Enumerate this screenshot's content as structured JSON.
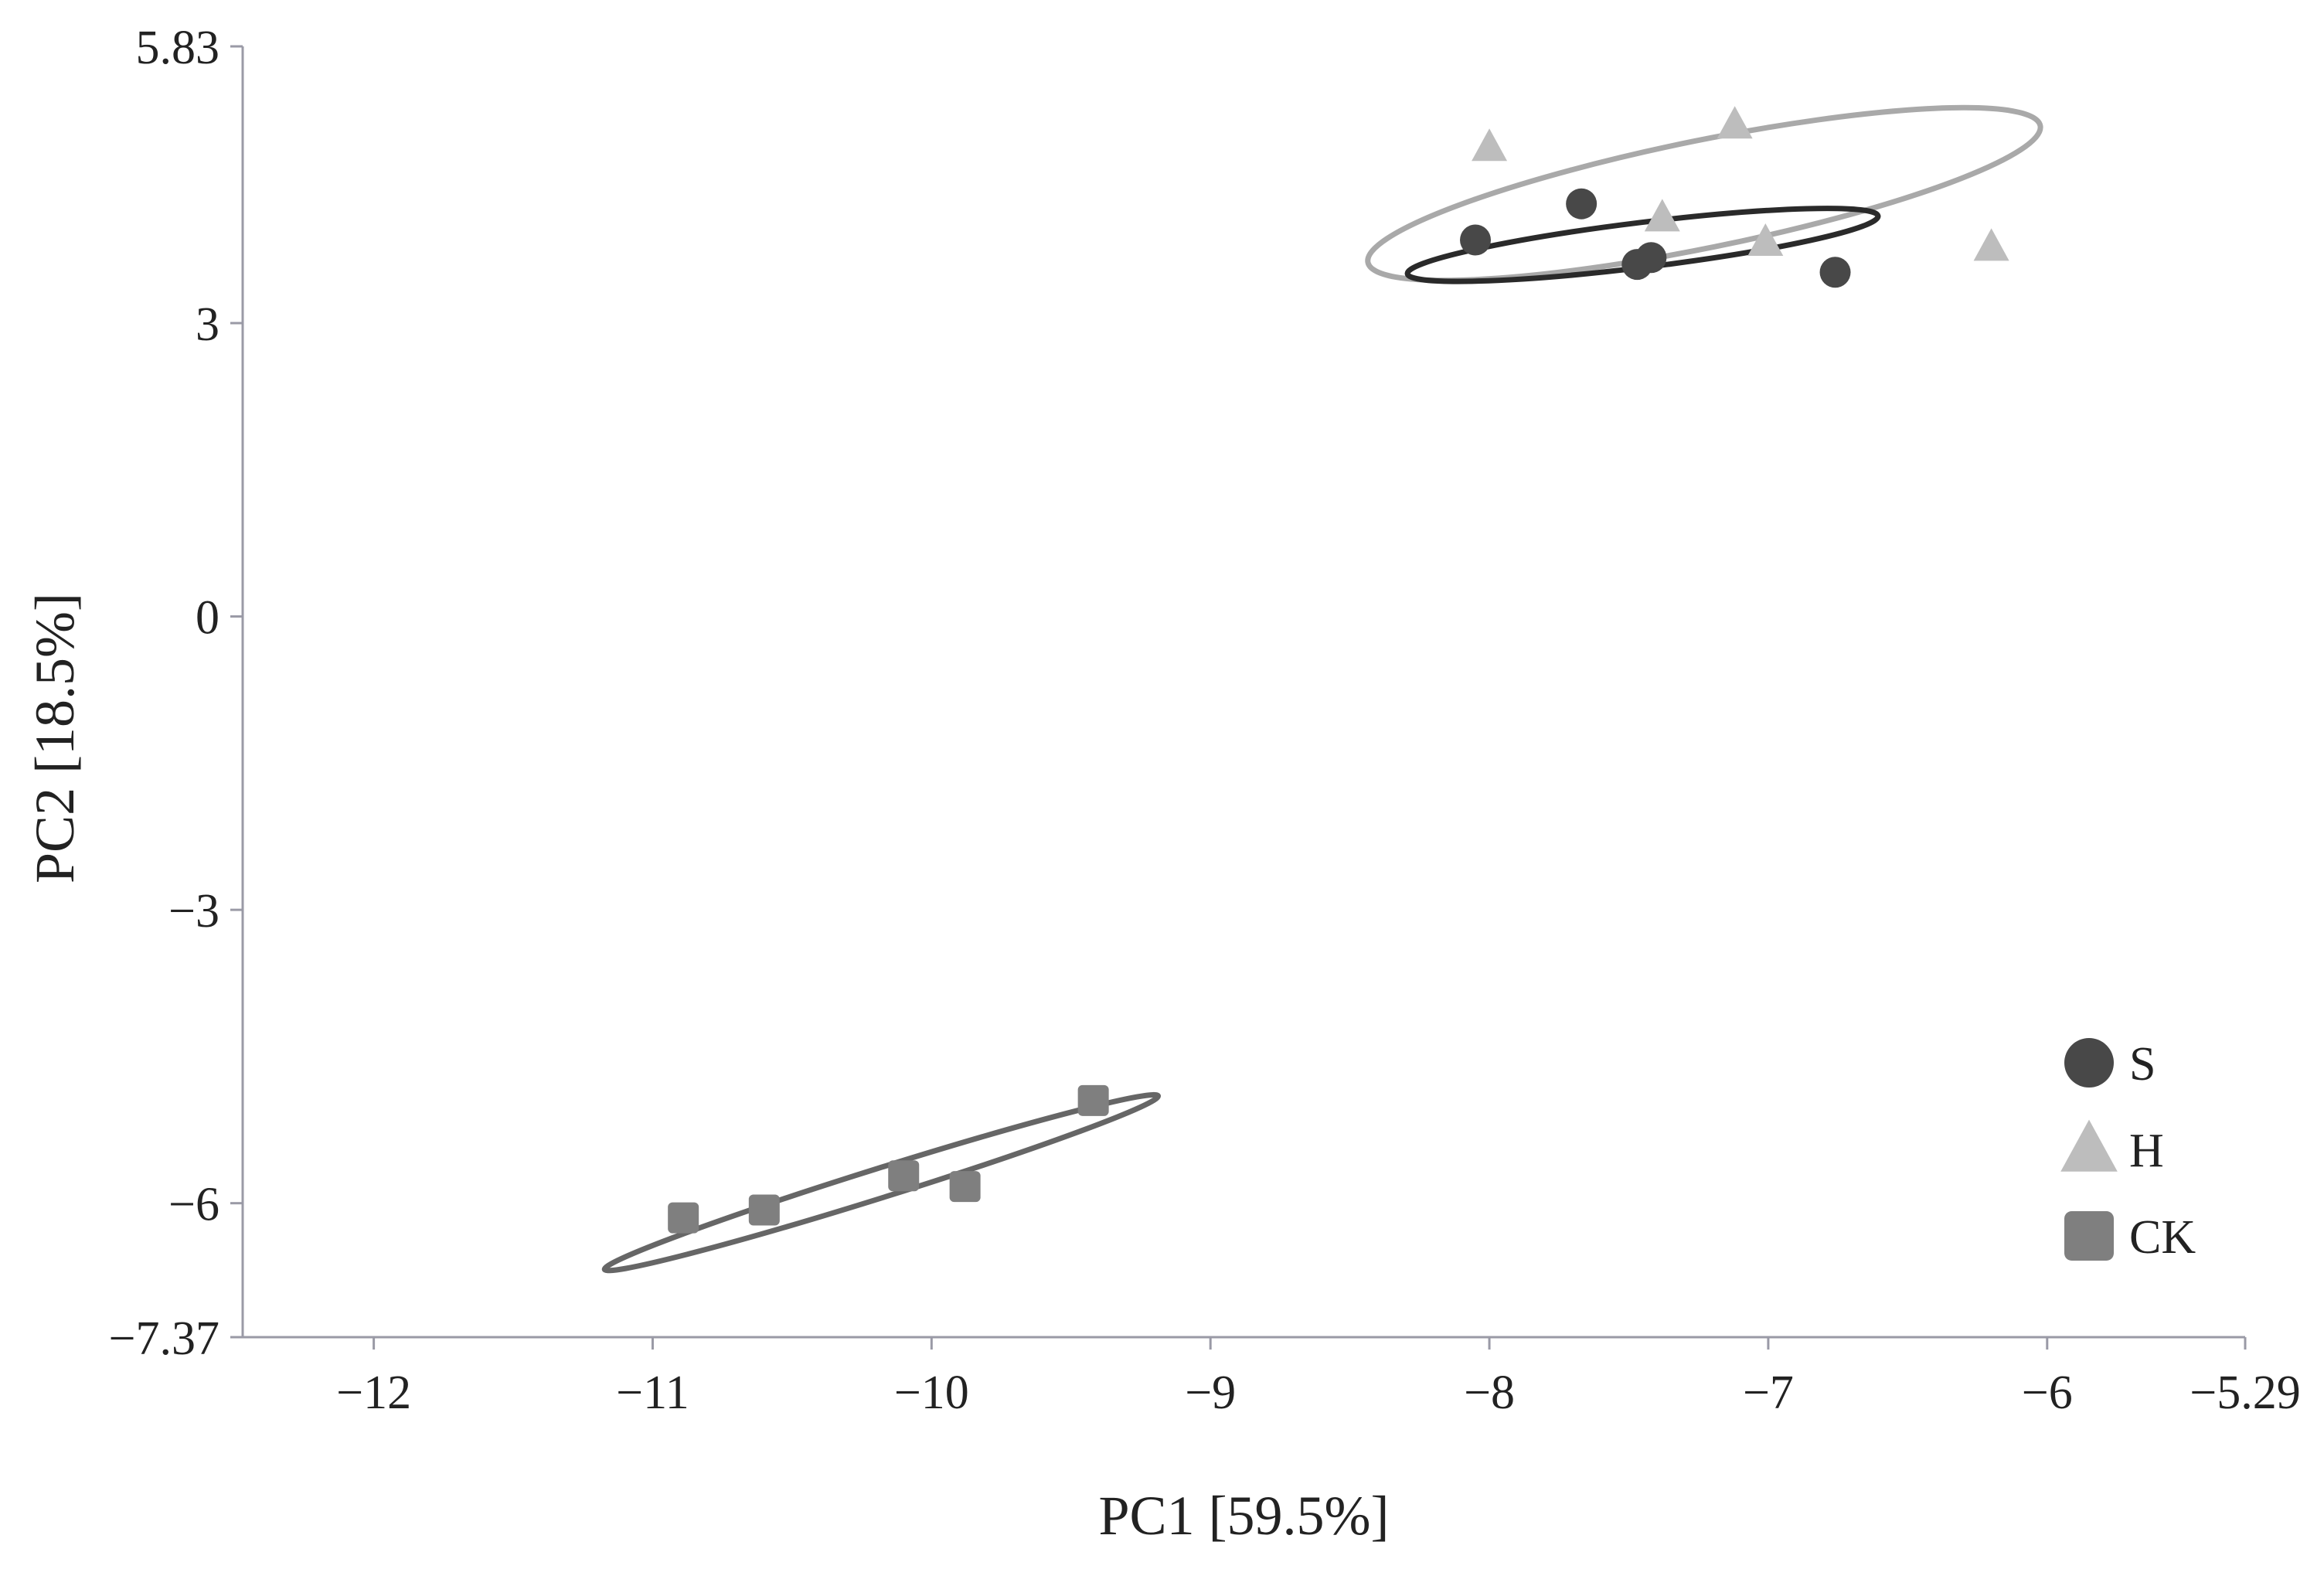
{
  "chart_data": {
    "type": "scatter",
    "xlabel": "PC1 [59.5%]",
    "ylabel": "PC2 [18.5%]",
    "xlim": [
      -12.47,
      -5.29
    ],
    "ylim": [
      -7.37,
      5.83
    ],
    "xticks": [
      -12,
      -11,
      -10,
      -9,
      -8,
      -7,
      -6,
      -5.29
    ],
    "xtick_labels": [
      "−12",
      "−11",
      "−10",
      "−9",
      "−8",
      "−7",
      "−6",
      "−5.29"
    ],
    "yticks": [
      -7.37,
      -6,
      -3,
      0,
      3,
      5.83
    ],
    "ytick_labels": [
      "−7.37",
      "−6",
      "−3",
      "0",
      "3",
      "5.83"
    ],
    "grid": false,
    "legend_position": "bottom-right",
    "series": [
      {
        "name": "S",
        "marker": "circle",
        "color": "#484848",
        "ellipse_color": "#2a2a2a",
        "points": [
          {
            "x": -8.05,
            "y": 3.85
          },
          {
            "x": -7.67,
            "y": 4.22
          },
          {
            "x": -7.47,
            "y": 3.6
          },
          {
            "x": -7.42,
            "y": 3.67
          },
          {
            "x": -6.76,
            "y": 3.52
          }
        ]
      },
      {
        "name": "H",
        "marker": "triangle",
        "color": "#bdbdbd",
        "ellipse_color": "#a9a9a9",
        "points": [
          {
            "x": -8.0,
            "y": 4.8
          },
          {
            "x": -7.12,
            "y": 5.03
          },
          {
            "x": -7.38,
            "y": 4.08
          },
          {
            "x": -7.01,
            "y": 3.83
          },
          {
            "x": -6.2,
            "y": 3.78
          }
        ]
      },
      {
        "name": "CK",
        "marker": "square",
        "color": "#7f7f7f",
        "ellipse_color": "#666666",
        "points": [
          {
            "x": -10.89,
            "y": -6.15
          },
          {
            "x": -10.6,
            "y": -6.07
          },
          {
            "x": -10.1,
            "y": -5.72
          },
          {
            "x": -9.88,
            "y": -5.83
          },
          {
            "x": -9.42,
            "y": -4.95
          }
        ]
      }
    ],
    "ellipses": [
      {
        "series": "H",
        "cx": -7.23,
        "cy": 4.32,
        "rx": 1.23,
        "ry": 0.55,
        "rotation_deg": -11.5
      },
      {
        "series": "S",
        "cx": -7.45,
        "cy": 3.8,
        "rx": 0.85,
        "ry": 0.23,
        "rotation_deg": -7
      },
      {
        "series": "CK",
        "cx": -10.18,
        "cy": -5.79,
        "rx": 1.04,
        "ry": 0.15,
        "rotation_deg": -17.4
      }
    ]
  }
}
